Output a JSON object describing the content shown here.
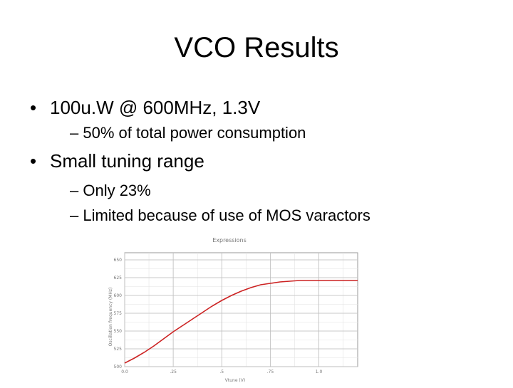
{
  "slide": {
    "title": "VCO Results",
    "bullets": [
      {
        "text": "100u.W @ 600MHz, 1.3V",
        "subs": [
          "– 50% of total power consumption"
        ]
      },
      {
        "text": "Small tuning range",
        "subs": [
          "– Only 23%",
          "– Limited because of use of MOS varactors"
        ]
      }
    ]
  },
  "chart_data": {
    "type": "line",
    "title": "Expressions",
    "xlabel": "Vtune (V)",
    "ylabel": "Oscillation frequency (MHz)",
    "xlim": [
      0.0,
      1.2
    ],
    "ylim": [
      500,
      660
    ],
    "x_ticks": [
      "0.0",
      ".25",
      ".5",
      ".75",
      "1.0"
    ],
    "y_ticks": [
      "500",
      "525",
      "550",
      "575",
      "600",
      "625",
      "650"
    ],
    "grid": true,
    "series": [
      {
        "color": "#cc2222",
        "x": [
          0.0,
          0.05,
          0.1,
          0.15,
          0.2,
          0.25,
          0.3,
          0.35,
          0.4,
          0.45,
          0.5,
          0.55,
          0.6,
          0.65,
          0.7,
          0.75,
          0.8,
          0.85,
          0.9,
          0.95,
          1.0,
          1.05,
          1.1,
          1.15,
          1.2
        ],
        "y": [
          505,
          512,
          520,
          529,
          539,
          549,
          558,
          567,
          576,
          585,
          593,
          600,
          606,
          611,
          615,
          617,
          619,
          620,
          621,
          621,
          621,
          621,
          621,
          621,
          621
        ]
      }
    ]
  }
}
